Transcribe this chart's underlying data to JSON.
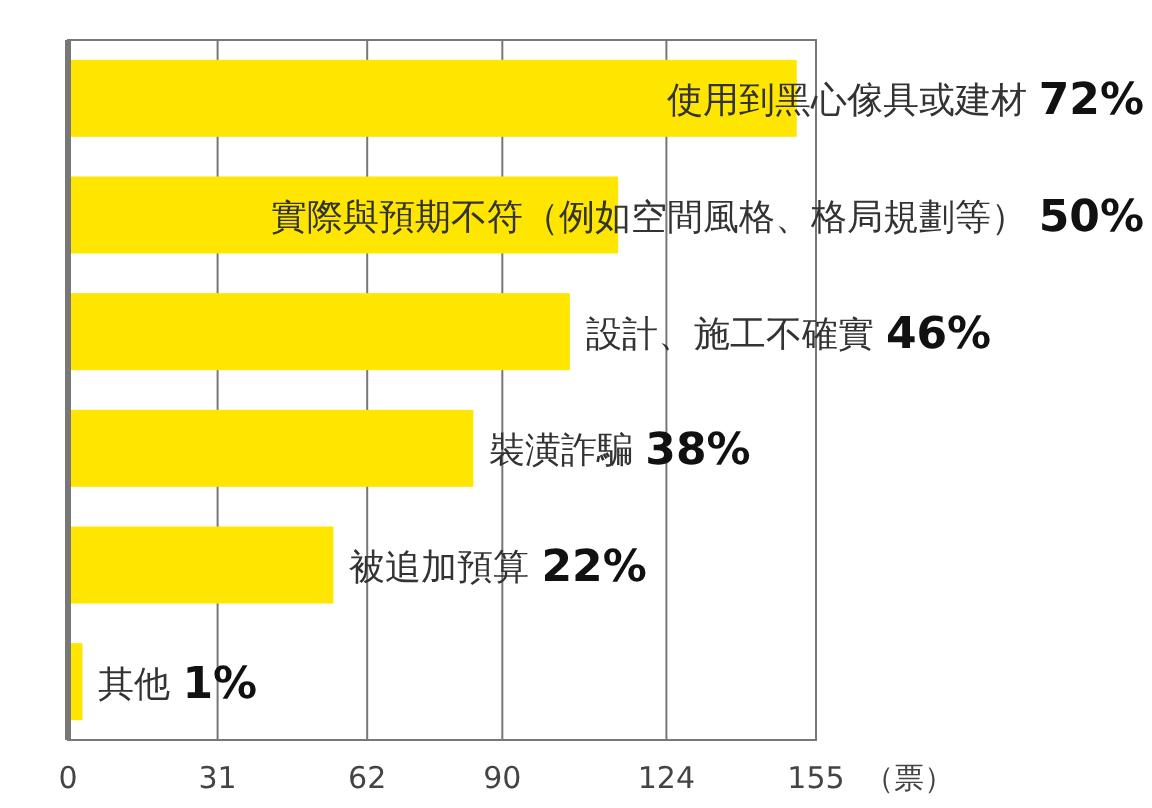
{
  "chart_data": {
    "type": "bar",
    "orientation": "horizontal",
    "xlabel": "（票）",
    "categories": [
      "使用到黑心傢具或建材",
      "實際與預期不符（例如空間風格、格局規劃等）",
      "設計、施工不確實",
      "裝潢詐騙",
      "被追加預算",
      "其他"
    ],
    "values": [
      151,
      114,
      104,
      84,
      55,
      3
    ],
    "annotations": [
      "72%",
      "50%",
      "46%",
      "38%",
      "22%",
      "1%"
    ],
    "color": "#ffe600",
    "xlim": [
      0,
      155
    ],
    "xticks": [
      0,
      31,
      62,
      90,
      124,
      155
    ],
    "grid": "x"
  }
}
